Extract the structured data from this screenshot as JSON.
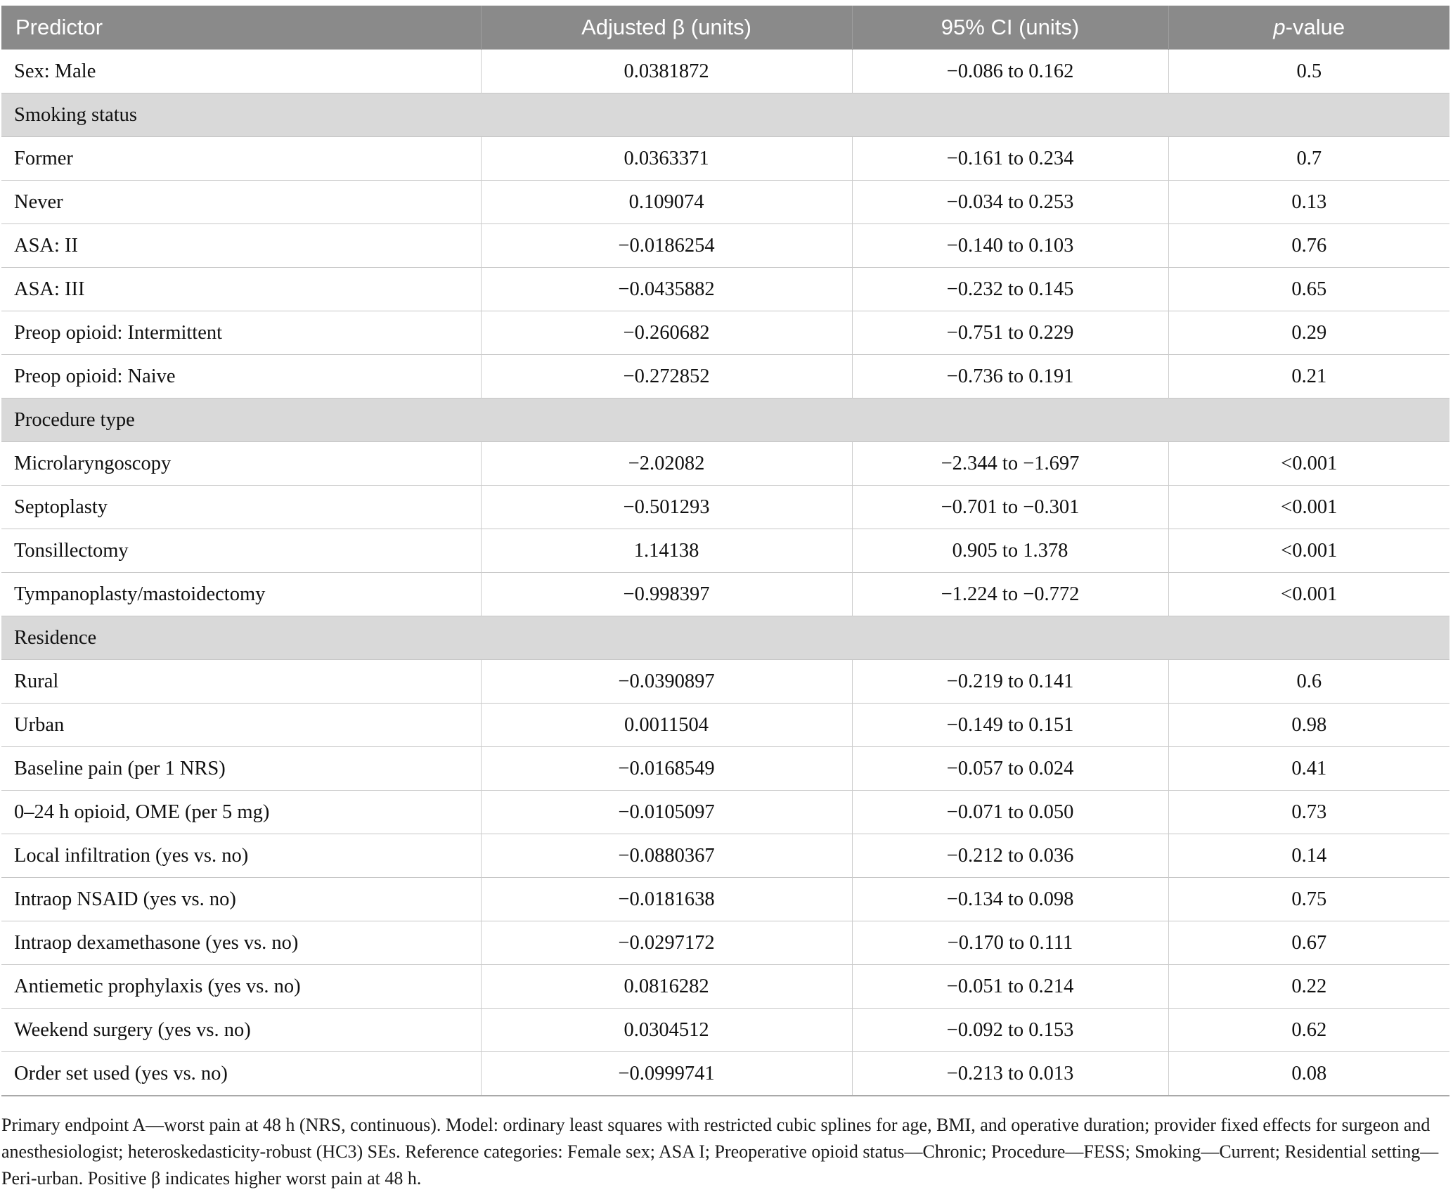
{
  "table": {
    "header": {
      "predictor": "Predictor",
      "beta": "Adjusted β (units)",
      "ci": "95% CI (units)",
      "p_italic": "p",
      "p_rest": "-value"
    },
    "rows": [
      {
        "type": "data",
        "predictor": "Sex: Male",
        "beta": "0.0381872",
        "ci": "−0.086 to 0.162",
        "p": "0.5"
      },
      {
        "type": "section",
        "label": "Smoking status"
      },
      {
        "type": "data",
        "predictor": "Former",
        "beta": "0.0363371",
        "ci": "−0.161 to 0.234",
        "p": "0.7"
      },
      {
        "type": "data",
        "predictor": "Never",
        "beta": "0.109074",
        "ci": "−0.034 to 0.253",
        "p": "0.13"
      },
      {
        "type": "data",
        "predictor": "ASA: II",
        "beta": "−0.0186254",
        "ci": "−0.140 to 0.103",
        "p": "0.76"
      },
      {
        "type": "data",
        "predictor": "ASA: III",
        "beta": "−0.0435882",
        "ci": "−0.232 to 0.145",
        "p": "0.65"
      },
      {
        "type": "data",
        "predictor": "Preop opioid: Intermittent",
        "beta": "−0.260682",
        "ci": "−0.751 to 0.229",
        "p": "0.29"
      },
      {
        "type": "data",
        "predictor": "Preop opioid: Naive",
        "beta": "−0.272852",
        "ci": "−0.736 to 0.191",
        "p": "0.21"
      },
      {
        "type": "section",
        "label": "Procedure type"
      },
      {
        "type": "data",
        "predictor": "Microlaryngoscopy",
        "beta": "−2.02082",
        "ci": "−2.344 to −1.697",
        "p": "<0.001"
      },
      {
        "type": "data",
        "predictor": "Septoplasty",
        "beta": "−0.501293",
        "ci": "−0.701 to −0.301",
        "p": "<0.001"
      },
      {
        "type": "data",
        "predictor": "Tonsillectomy",
        "beta": "1.14138",
        "ci": "0.905 to 1.378",
        "p": "<0.001"
      },
      {
        "type": "data",
        "predictor": "Tympanoplasty/mastoidectomy",
        "beta": "−0.998397",
        "ci": "−1.224 to −0.772",
        "p": "<0.001"
      },
      {
        "type": "section",
        "label": "Residence"
      },
      {
        "type": "data",
        "predictor": "Rural",
        "beta": "−0.0390897",
        "ci": "−0.219 to 0.141",
        "p": "0.6"
      },
      {
        "type": "data",
        "predictor": "Urban",
        "beta": "0.0011504",
        "ci": "−0.149 to 0.151",
        "p": "0.98"
      },
      {
        "type": "data",
        "predictor": "Baseline pain (per 1 NRS)",
        "beta": "−0.0168549",
        "ci": "−0.057 to 0.024",
        "p": "0.41"
      },
      {
        "type": "data",
        "predictor": "0–24 h opioid, OME (per 5 mg)",
        "beta": "−0.0105097",
        "ci": "−0.071 to 0.050",
        "p": "0.73"
      },
      {
        "type": "data",
        "predictor": "Local infiltration (yes vs. no)",
        "beta": "−0.0880367",
        "ci": "−0.212 to 0.036",
        "p": "0.14"
      },
      {
        "type": "data",
        "predictor": "Intraop NSAID (yes vs. no)",
        "beta": "−0.0181638",
        "ci": "−0.134 to 0.098",
        "p": "0.75"
      },
      {
        "type": "data",
        "predictor": "Intraop dexamethasone (yes vs. no)",
        "beta": "−0.0297172",
        "ci": "−0.170 to 0.111",
        "p": "0.67"
      },
      {
        "type": "data",
        "predictor": "Antiemetic prophylaxis (yes vs. no)",
        "beta": "0.0816282",
        "ci": "−0.051 to 0.214",
        "p": "0.22"
      },
      {
        "type": "data",
        "predictor": "Weekend surgery (yes vs. no)",
        "beta": "0.0304512",
        "ci": "−0.092 to 0.153",
        "p": "0.62"
      },
      {
        "type": "data",
        "predictor": "Order set used (yes vs. no)",
        "beta": "−0.0999741",
        "ci": "−0.213 to 0.013",
        "p": "0.08"
      }
    ]
  },
  "footnote": "Primary endpoint A—worst pain at 48 h (NRS, continuous). Model: ordinary least squares with restricted cubic splines for age, BMI, and operative duration; provider fixed effects for surgeon and anesthesiologist; heteroskedasticity-robust (HC3) SEs. Reference categories: Female sex; ASA I; Preoperative opioid status—Chronic; Procedure—FESS; Smoking—Current; Residential setting—Peri-urban. Positive β indicates higher worst pain at 48 h.",
  "colors": {
    "header_bg": "#8a8a8a",
    "header_text": "#ffffff",
    "section_bg": "#d9d9d9",
    "border": "#c6c6c6",
    "text": "#111111"
  }
}
